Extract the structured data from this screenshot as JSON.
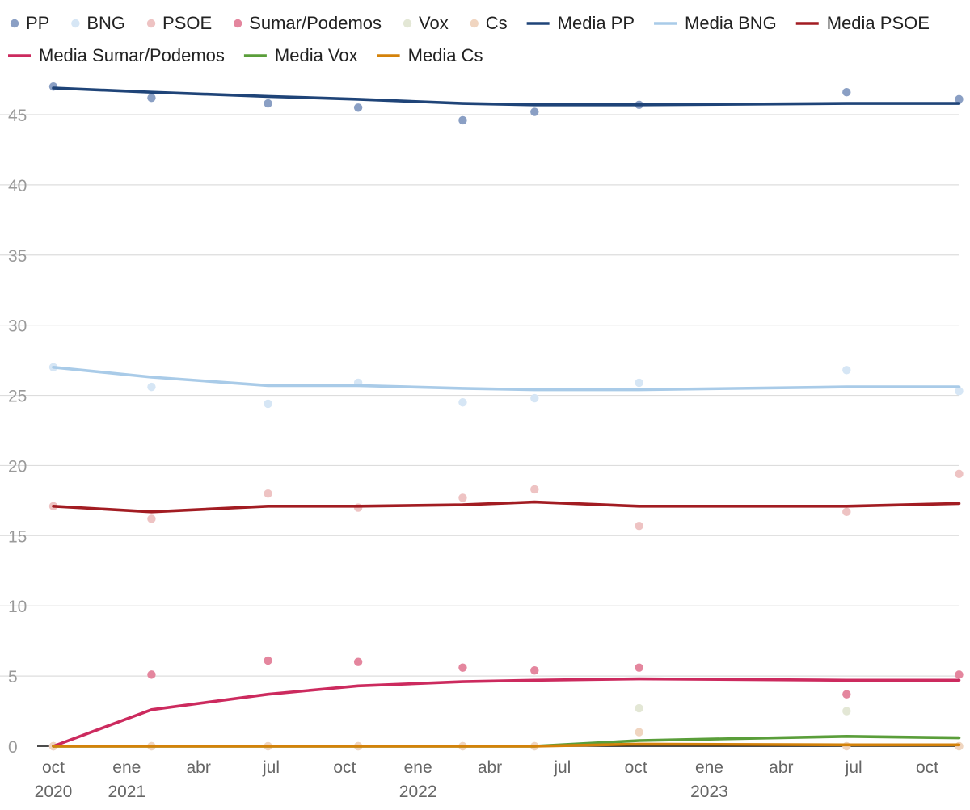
{
  "chart_data": {
    "type": "scatter",
    "title": "",
    "xlabel": "",
    "ylabel": "",
    "ylim": [
      0,
      47
    ],
    "xlim": [
      "2020-10-01",
      "2023-11-15"
    ],
    "yticks": [
      0,
      5,
      10,
      15,
      20,
      25,
      30,
      35,
      40,
      45
    ],
    "grid": true,
    "legend_position": "top",
    "x_tick_labels": [
      {
        "date": "2020-10-01",
        "label": "oct",
        "year": "2020"
      },
      {
        "date": "2021-01-01",
        "label": "ene",
        "year": "2021"
      },
      {
        "date": "2021-04-01",
        "label": "abr",
        "year": ""
      },
      {
        "date": "2021-07-01",
        "label": "jul",
        "year": ""
      },
      {
        "date": "2021-10-01",
        "label": "oct",
        "year": ""
      },
      {
        "date": "2022-01-01",
        "label": "ene",
        "year": "2022"
      },
      {
        "date": "2022-04-01",
        "label": "abr",
        "year": ""
      },
      {
        "date": "2022-07-01",
        "label": "jul",
        "year": ""
      },
      {
        "date": "2022-10-01",
        "label": "oct",
        "year": ""
      },
      {
        "date": "2023-01-01",
        "label": "ene",
        "year": "2023"
      },
      {
        "date": "2023-04-01",
        "label": "abr",
        "year": ""
      },
      {
        "date": "2023-07-01",
        "label": "jul",
        "year": ""
      },
      {
        "date": "2023-10-01",
        "label": "oct",
        "year": ""
      }
    ],
    "series": [
      {
        "name": "PP",
        "kind": "points",
        "color": "#8a9fc4",
        "points": [
          [
            "2020-10-01",
            47.0
          ],
          [
            "2021-02-01",
            46.2
          ],
          [
            "2021-06-27",
            45.8
          ],
          [
            "2021-10-18",
            45.5
          ],
          [
            "2022-02-26",
            44.6
          ],
          [
            "2022-05-27",
            45.2
          ],
          [
            "2022-10-05",
            45.7
          ],
          [
            "2023-06-22",
            46.6
          ],
          [
            "2023-11-10",
            46.1
          ]
        ]
      },
      {
        "name": "BNG",
        "kind": "points",
        "color": "#d6e6f5",
        "points": [
          [
            "2020-10-01",
            27.0
          ],
          [
            "2021-02-01",
            25.6
          ],
          [
            "2021-06-27",
            24.4
          ],
          [
            "2021-10-18",
            25.9
          ],
          [
            "2022-02-26",
            24.5
          ],
          [
            "2022-05-27",
            24.8
          ],
          [
            "2022-10-05",
            25.9
          ],
          [
            "2023-06-22",
            26.8
          ],
          [
            "2023-11-10",
            25.3
          ]
        ]
      },
      {
        "name": "PSOE",
        "kind": "points",
        "color": "#eec3c3",
        "points": [
          [
            "2020-10-01",
            17.1
          ],
          [
            "2021-02-01",
            16.2
          ],
          [
            "2021-06-27",
            18.0
          ],
          [
            "2021-10-18",
            17.0
          ],
          [
            "2022-02-26",
            17.7
          ],
          [
            "2022-05-27",
            18.3
          ],
          [
            "2022-10-05",
            15.7
          ],
          [
            "2023-06-22",
            16.7
          ],
          [
            "2023-11-10",
            19.4
          ]
        ]
      },
      {
        "name": "Sumar/Podemos",
        "kind": "points",
        "color": "#e4869e",
        "points": [
          [
            "2020-10-01",
            0.0
          ],
          [
            "2021-02-01",
            5.1
          ],
          [
            "2021-06-27",
            6.1
          ],
          [
            "2021-10-18",
            6.0
          ],
          [
            "2022-02-26",
            5.6
          ],
          [
            "2022-05-27",
            5.4
          ],
          [
            "2022-10-05",
            5.6
          ],
          [
            "2023-06-22",
            3.7
          ],
          [
            "2023-11-10",
            5.1
          ]
        ]
      },
      {
        "name": "Vox",
        "kind": "points",
        "color": "#e3e7d5",
        "points": [
          [
            "2020-10-01",
            0.0
          ],
          [
            "2021-02-01",
            0.0
          ],
          [
            "2021-06-27",
            0.0
          ],
          [
            "2021-10-18",
            0.0
          ],
          [
            "2022-02-26",
            0.0
          ],
          [
            "2022-05-27",
            0.0
          ],
          [
            "2022-10-05",
            2.7
          ],
          [
            "2023-06-22",
            2.5
          ],
          [
            "2023-11-10",
            0.0
          ]
        ]
      },
      {
        "name": "Cs",
        "kind": "points",
        "color": "#f0d5c0",
        "points": [
          [
            "2020-10-01",
            0.0
          ],
          [
            "2021-02-01",
            0.0
          ],
          [
            "2021-06-27",
            0.0
          ],
          [
            "2021-10-18",
            0.0
          ],
          [
            "2022-02-26",
            0.0
          ],
          [
            "2022-05-27",
            0.0
          ],
          [
            "2022-10-05",
            1.0
          ],
          [
            "2023-06-22",
            0.0
          ],
          [
            "2023-11-10",
            0.0
          ]
        ]
      },
      {
        "name": "Media PP",
        "kind": "line",
        "color": "#1f4478",
        "points": [
          [
            "2020-10-01",
            46.9
          ],
          [
            "2021-02-01",
            46.6
          ],
          [
            "2021-06-27",
            46.3
          ],
          [
            "2021-10-18",
            46.1
          ],
          [
            "2022-02-26",
            45.8
          ],
          [
            "2022-05-27",
            45.7
          ],
          [
            "2022-10-05",
            45.7
          ],
          [
            "2023-06-22",
            45.8
          ],
          [
            "2023-11-10",
            45.8
          ]
        ]
      },
      {
        "name": "Media BNG",
        "kind": "line",
        "color": "#a9cbe8",
        "points": [
          [
            "2020-10-01",
            27.0
          ],
          [
            "2021-02-01",
            26.3
          ],
          [
            "2021-06-27",
            25.7
          ],
          [
            "2021-10-18",
            25.7
          ],
          [
            "2022-02-26",
            25.5
          ],
          [
            "2022-05-27",
            25.4
          ],
          [
            "2022-10-05",
            25.4
          ],
          [
            "2023-06-22",
            25.6
          ],
          [
            "2023-11-10",
            25.6
          ]
        ]
      },
      {
        "name": "Media PSOE",
        "kind": "line",
        "color": "#a21c22",
        "points": [
          [
            "2020-10-01",
            17.1
          ],
          [
            "2021-02-01",
            16.7
          ],
          [
            "2021-06-27",
            17.1
          ],
          [
            "2021-10-18",
            17.1
          ],
          [
            "2022-02-26",
            17.2
          ],
          [
            "2022-05-27",
            17.4
          ],
          [
            "2022-10-05",
            17.1
          ],
          [
            "2023-06-22",
            17.1
          ],
          [
            "2023-11-10",
            17.3
          ]
        ]
      },
      {
        "name": "Media Sumar/Podemos",
        "kind": "line",
        "color": "#cc2a5e",
        "points": [
          [
            "2020-10-01",
            0.0
          ],
          [
            "2021-02-01",
            2.6
          ],
          [
            "2021-06-27",
            3.7
          ],
          [
            "2021-10-18",
            4.3
          ],
          [
            "2022-02-26",
            4.6
          ],
          [
            "2022-05-27",
            4.7
          ],
          [
            "2022-10-05",
            4.8
          ],
          [
            "2023-06-22",
            4.7
          ],
          [
            "2023-11-10",
            4.7
          ]
        ]
      },
      {
        "name": "Media Vox",
        "kind": "line",
        "color": "#5a9e3a",
        "points": [
          [
            "2020-10-01",
            0.0
          ],
          [
            "2021-02-01",
            0.0
          ],
          [
            "2021-06-27",
            0.0
          ],
          [
            "2021-10-18",
            0.0
          ],
          [
            "2022-02-26",
            0.0
          ],
          [
            "2022-05-27",
            0.0
          ],
          [
            "2022-10-05",
            0.4
          ],
          [
            "2023-06-22",
            0.7
          ],
          [
            "2023-11-10",
            0.6
          ]
        ]
      },
      {
        "name": "Media Cs",
        "kind": "line",
        "color": "#d4820a",
        "points": [
          [
            "2020-10-01",
            0.0
          ],
          [
            "2021-02-01",
            0.0
          ],
          [
            "2021-06-27",
            0.0
          ],
          [
            "2021-10-18",
            0.0
          ],
          [
            "2022-02-26",
            0.0
          ],
          [
            "2022-05-27",
            0.0
          ],
          [
            "2022-10-05",
            0.15
          ],
          [
            "2023-06-22",
            0.1
          ],
          [
            "2023-11-10",
            0.1
          ]
        ]
      }
    ]
  }
}
